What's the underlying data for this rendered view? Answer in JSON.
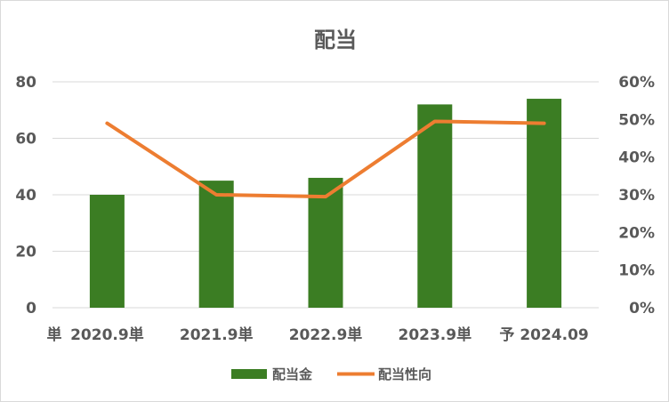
{
  "chart_data": {
    "type": "bar",
    "title": "配当",
    "categories": [
      "2020.9単",
      "2021.9単",
      "2022.9単",
      "2023.9単",
      "予 2024.09"
    ],
    "category_prefix": "単",
    "series": [
      {
        "name": "配当金",
        "type": "bar",
        "axis": "left",
        "color": "#3b7d23",
        "values": [
          40,
          45,
          46,
          72,
          74
        ]
      },
      {
        "name": "配当性向",
        "type": "line",
        "axis": "right",
        "color": "#ed7d31",
        "values": [
          0.49,
          0.3,
          0.295,
          0.495,
          0.49
        ]
      }
    ],
    "y_left": {
      "min": 0,
      "max": 80,
      "ticks": [
        "0",
        "20",
        "40",
        "60",
        "80"
      ]
    },
    "y_right": {
      "min": 0,
      "max": 0.6,
      "ticks": [
        "0%",
        "10%",
        "20%",
        "30%",
        "40%",
        "50%",
        "60%"
      ]
    },
    "grid": true,
    "legend_position": "bottom"
  }
}
